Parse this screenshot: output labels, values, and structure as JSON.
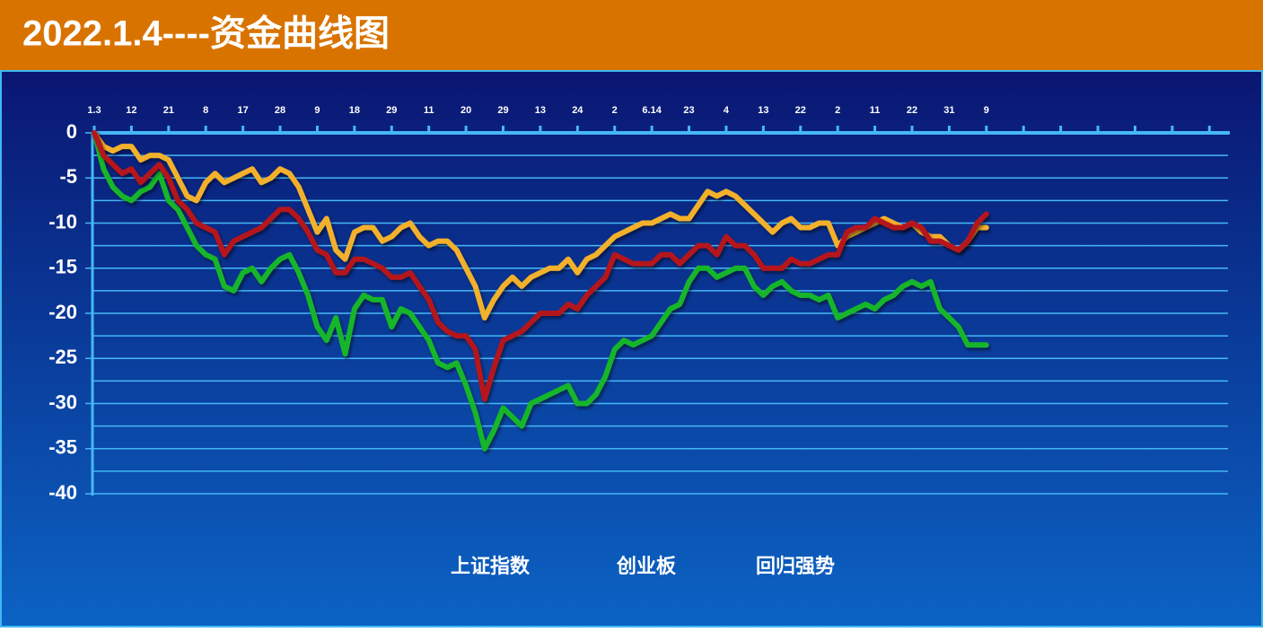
{
  "chart_data": {
    "type": "line",
    "title": "2022.1.4----资金曲线图",
    "x": [
      0,
      1,
      2,
      3,
      4,
      5,
      6,
      7,
      8,
      9,
      10,
      11,
      12,
      13,
      14,
      15,
      16,
      17,
      18,
      19,
      20,
      21,
      22,
      23,
      24,
      25,
      26,
      27,
      28,
      29,
      30,
      31,
      32,
      33,
      34,
      35,
      36,
      37,
      38,
      39,
      40,
      41,
      42,
      43,
      44,
      45,
      46,
      47,
      48,
      49,
      50,
      51,
      52,
      53,
      54,
      55,
      56,
      57,
      58,
      59,
      60,
      61,
      62,
      63,
      64,
      65,
      66,
      67,
      68,
      69,
      70,
      71,
      72,
      73,
      74,
      75,
      76,
      77,
      78,
      79,
      80,
      81,
      82,
      83,
      84,
      85,
      86,
      87,
      88,
      89,
      90,
      91,
      92,
      93,
      94,
      95,
      96
    ],
    "xlim": [
      0,
      122
    ],
    "xticks": [
      {
        "value": 0,
        "label": "1.3"
      },
      {
        "value": 4,
        "label": "12"
      },
      {
        "value": 8,
        "label": "21"
      },
      {
        "value": 12,
        "label": "8"
      },
      {
        "value": 16,
        "label": "17"
      },
      {
        "value": 20,
        "label": "28"
      },
      {
        "value": 24,
        "label": "9"
      },
      {
        "value": 28,
        "label": "18"
      },
      {
        "value": 32,
        "label": "29"
      },
      {
        "value": 36,
        "label": "11"
      },
      {
        "value": 40,
        "label": "20"
      },
      {
        "value": 44,
        "label": "29"
      },
      {
        "value": 48,
        "label": "13"
      },
      {
        "value": 52,
        "label": "24"
      },
      {
        "value": 56,
        "label": "2"
      },
      {
        "value": 60,
        "label": "6.14"
      },
      {
        "value": 64,
        "label": "23"
      },
      {
        "value": 68,
        "label": "4"
      },
      {
        "value": 72,
        "label": "13"
      },
      {
        "value": 76,
        "label": "22"
      },
      {
        "value": 80,
        "label": "2"
      },
      {
        "value": 84,
        "label": "11"
      },
      {
        "value": 88,
        "label": "22"
      },
      {
        "value": 92,
        "label": "31"
      },
      {
        "value": 96,
        "label": "9"
      }
    ],
    "minor_xticks": [
      100,
      104,
      108,
      112,
      116,
      120
    ],
    "ylim": [
      -40,
      0
    ],
    "yticks": [
      0,
      -5,
      -10,
      -15,
      -20,
      -25,
      -30,
      -35,
      -40
    ],
    "minor_yticks": [
      -2.5,
      -7.5,
      -12.5,
      -17.5,
      -22.5,
      -27.5,
      -32.5,
      -37.5
    ],
    "grid": true,
    "legend": "bottom",
    "series": [
      {
        "name": "上证指数",
        "color": "#f3b02c",
        "values": [
          0,
          -1.5,
          -2,
          -1.5,
          -1.5,
          -3,
          -2.5,
          -2.5,
          -3,
          -5,
          -7,
          -7.5,
          -5.5,
          -4.5,
          -5.5,
          -5,
          -4.5,
          -4,
          -5.5,
          -5,
          -4,
          -4.5,
          -6,
          -8.5,
          -11,
          -9.5,
          -13,
          -14,
          -11,
          -10.5,
          -10.5,
          -12,
          -11.5,
          -10.5,
          -10,
          -11.5,
          -12.5,
          -12,
          -12,
          -13,
          -15,
          -17,
          -20.5,
          -18.5,
          -17,
          -16,
          -17,
          -16,
          -15.5,
          -15,
          -15,
          -14,
          -15.5,
          -14,
          -13.5,
          -12.5,
          -11.5,
          -11,
          -10.5,
          -10,
          -10,
          -9.5,
          -9,
          -9.5,
          -9.5,
          -8,
          -6.5,
          -7,
          -6.5,
          -7,
          -8,
          -9,
          -10,
          -11,
          -10,
          -9.5,
          -10.5,
          -10.5,
          -10,
          -10,
          -12.5,
          -11.5,
          -11,
          -10.5,
          -10,
          -9.5,
          -10,
          -10.5,
          -10,
          -11,
          -11.5,
          -11.5,
          -12.5,
          -13,
          -12,
          -10.5,
          -10.5
        ]
      },
      {
        "name": "创业板",
        "color": "#14b52a",
        "values": [
          0,
          -4,
          -6,
          -7,
          -7.5,
          -6.5,
          -6,
          -4.5,
          -7.5,
          -8.5,
          -10.5,
          -12.5,
          -13.5,
          -14,
          -17,
          -17.5,
          -15.5,
          -15,
          -16.5,
          -15,
          -14,
          -13.5,
          -15.5,
          -18,
          -21.5,
          -23,
          -20.5,
          -24.5,
          -19.5,
          -18,
          -18.5,
          -18.5,
          -21.5,
          -19.5,
          -20,
          -21.5,
          -23,
          -25.5,
          -26,
          -25.5,
          -28,
          -31,
          -35,
          -33,
          -30.5,
          -31.5,
          -32.5,
          -30,
          -29.5,
          -29,
          -28.5,
          -28,
          -30,
          -30,
          -29,
          -27,
          -24,
          -23,
          -23.5,
          -23,
          -22.5,
          -21,
          -19.5,
          -19,
          -16.5,
          -15,
          -15,
          -16,
          -15.5,
          -15,
          -15,
          -17,
          -18,
          -17,
          -16.5,
          -17.5,
          -18,
          -18,
          -18.5,
          -18,
          -20.5,
          -20,
          -19.5,
          -19,
          -19.5,
          -18.5,
          -18,
          -17,
          -16.5,
          -17,
          -16.5,
          -19.5,
          -20.5,
          -21.5,
          -23.5,
          -23.5,
          -23.5
        ]
      },
      {
        "name": "回归强势",
        "color": "#b5121b",
        "values": [
          0,
          -2.5,
          -3.5,
          -4.5,
          -4,
          -5.5,
          -4.5,
          -3.5,
          -5,
          -7.5,
          -8.5,
          -10,
          -10.5,
          -11,
          -13.5,
          -12,
          -11.5,
          -11,
          -10.5,
          -9.5,
          -8.5,
          -8.5,
          -9.5,
          -11,
          -13,
          -13.5,
          -15.5,
          -15.5,
          -14,
          -14,
          -14.5,
          -15,
          -16,
          -16,
          -15.5,
          -17,
          -18.5,
          -21,
          -22,
          -22.5,
          -22.5,
          -24,
          -29.5,
          -26,
          -23,
          -22.5,
          -22,
          -21,
          -20,
          -20,
          -20,
          -19,
          -19.5,
          -18,
          -17,
          -16,
          -13.5,
          -14,
          -14.5,
          -14.5,
          -14.5,
          -13.5,
          -13.5,
          -14.5,
          -13.5,
          -12.5,
          -12.5,
          -13.5,
          -11.5,
          -12.5,
          -12.5,
          -13.5,
          -15,
          -15,
          -15,
          -14,
          -14.5,
          -14.5,
          -14,
          -13.5,
          -13.5,
          -11,
          -10.5,
          -10.5,
          -9.5,
          -10,
          -10.5,
          -10.5,
          -10,
          -10.5,
          -12,
          -12,
          -12.5,
          -13,
          -12,
          -10,
          -9
        ]
      }
    ]
  }
}
